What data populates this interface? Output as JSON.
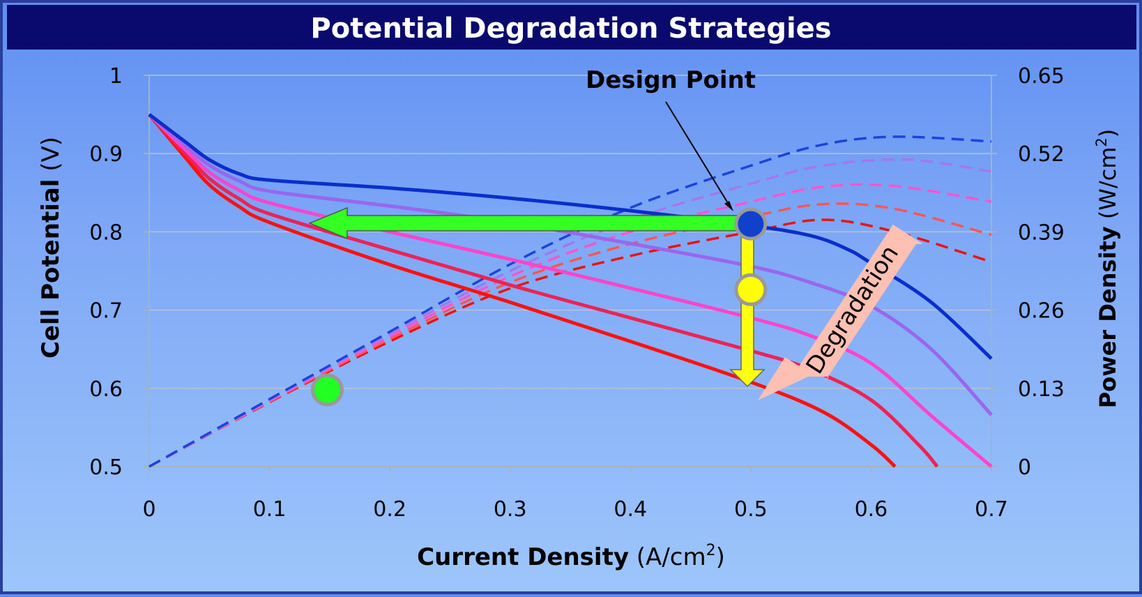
{
  "slide": {
    "title": "Potential Degradation Strategies",
    "colors": {
      "title_bar": "#0a0a6e",
      "border": "#2a3f9c",
      "grid": "#b6c4d8"
    }
  },
  "chart_data": {
    "type": "line",
    "xlabel": {
      "bold": "Current Density",
      "unit": "(A/cm",
      "sup": "2",
      "close": ")"
    },
    "ylabel": {
      "bold": "Cell Potential",
      "unit": "(V)"
    },
    "y2label": {
      "bold": "Power Density",
      "unit": "(W/cm",
      "sup": "2",
      "close": ")"
    },
    "xlim": [
      0,
      0.7
    ],
    "ylim": [
      0.5,
      1.0
    ],
    "y2lim": [
      0,
      0.65
    ],
    "x_ticks": [
      "0",
      "0.1",
      "0.2",
      "0.3",
      "0.4",
      "0.5",
      "0.6",
      "0.7"
    ],
    "y_ticks": [
      "0.5",
      "0.6",
      "0.7",
      "0.8",
      "0.9",
      "1"
    ],
    "y2_ticks": [
      "0",
      "0.13",
      "0.26",
      "0.39",
      "0.52",
      "0.65"
    ],
    "grid": true,
    "polarization_curves": [
      {
        "color": "#0a2ecb",
        "points": [
          [
            0,
            0.95
          ],
          [
            0.03,
            0.915
          ],
          [
            0.05,
            0.892
          ],
          [
            0.075,
            0.874
          ],
          [
            0.1,
            0.866
          ],
          [
            0.2,
            0.856
          ],
          [
            0.3,
            0.843
          ],
          [
            0.4,
            0.827
          ],
          [
            0.5,
            0.808
          ],
          [
            0.55,
            0.795
          ],
          [
            0.58,
            0.778
          ],
          [
            0.6,
            0.76
          ],
          [
            0.65,
            0.71
          ],
          [
            0.7,
            0.638
          ]
        ]
      },
      {
        "color": "#9966ee",
        "points": [
          [
            0,
            0.95
          ],
          [
            0.03,
            0.91
          ],
          [
            0.05,
            0.885
          ],
          [
            0.075,
            0.865
          ],
          [
            0.1,
            0.852
          ],
          [
            0.2,
            0.833
          ],
          [
            0.3,
            0.812
          ],
          [
            0.4,
            0.785
          ],
          [
            0.5,
            0.756
          ],
          [
            0.55,
            0.735
          ],
          [
            0.6,
            0.705
          ],
          [
            0.65,
            0.65
          ],
          [
            0.7,
            0.566
          ]
        ]
      },
      {
        "color": "#ff44cc",
        "points": [
          [
            0,
            0.95
          ],
          [
            0.03,
            0.905
          ],
          [
            0.05,
            0.876
          ],
          [
            0.075,
            0.853
          ],
          [
            0.1,
            0.837
          ],
          [
            0.2,
            0.8
          ],
          [
            0.3,
            0.765
          ],
          [
            0.4,
            0.728
          ],
          [
            0.5,
            0.69
          ],
          [
            0.55,
            0.667
          ],
          [
            0.6,
            0.632
          ],
          [
            0.65,
            0.565
          ],
          [
            0.7,
            0.5
          ]
        ]
      },
      {
        "color": "#ee2255",
        "points": [
          [
            0,
            0.95
          ],
          [
            0.03,
            0.9
          ],
          [
            0.05,
            0.868
          ],
          [
            0.075,
            0.842
          ],
          [
            0.1,
            0.823
          ],
          [
            0.2,
            0.777
          ],
          [
            0.3,
            0.732
          ],
          [
            0.4,
            0.69
          ],
          [
            0.5,
            0.648
          ],
          [
            0.55,
            0.624
          ],
          [
            0.6,
            0.585
          ],
          [
            0.64,
            0.527
          ],
          [
            0.655,
            0.5
          ]
        ]
      },
      {
        "color": "#ff1111",
        "points": [
          [
            0,
            0.95
          ],
          [
            0.03,
            0.895
          ],
          [
            0.05,
            0.86
          ],
          [
            0.075,
            0.832
          ],
          [
            0.1,
            0.812
          ],
          [
            0.2,
            0.758
          ],
          [
            0.3,
            0.71
          ],
          [
            0.4,
            0.66
          ],
          [
            0.5,
            0.608
          ],
          [
            0.56,
            0.57
          ],
          [
            0.6,
            0.528
          ],
          [
            0.62,
            0.5
          ]
        ]
      }
    ],
    "power_curves": [
      {
        "color": "#1a44dd",
        "points": [
          [
            0,
            0
          ],
          [
            0.1,
            0.112
          ],
          [
            0.2,
            0.224
          ],
          [
            0.3,
            0.336
          ],
          [
            0.4,
            0.43
          ],
          [
            0.5,
            0.5
          ],
          [
            0.56,
            0.535
          ],
          [
            0.62,
            0.548
          ],
          [
            0.7,
            0.54
          ]
        ]
      },
      {
        "color": "#a577ee",
        "points": [
          [
            0,
            0
          ],
          [
            0.1,
            0.11
          ],
          [
            0.2,
            0.22
          ],
          [
            0.3,
            0.325
          ],
          [
            0.4,
            0.41
          ],
          [
            0.5,
            0.47
          ],
          [
            0.56,
            0.5
          ],
          [
            0.63,
            0.51
          ],
          [
            0.7,
            0.49
          ]
        ]
      },
      {
        "color": "#ff55cc",
        "points": [
          [
            0,
            0
          ],
          [
            0.1,
            0.109
          ],
          [
            0.2,
            0.216
          ],
          [
            0.3,
            0.316
          ],
          [
            0.4,
            0.39
          ],
          [
            0.5,
            0.44
          ],
          [
            0.56,
            0.465
          ],
          [
            0.62,
            0.466
          ],
          [
            0.7,
            0.44
          ]
        ]
      },
      {
        "color": "#ff5555",
        "points": [
          [
            0,
            0
          ],
          [
            0.1,
            0.108
          ],
          [
            0.2,
            0.212
          ],
          [
            0.3,
            0.306
          ],
          [
            0.4,
            0.37
          ],
          [
            0.5,
            0.415
          ],
          [
            0.56,
            0.436
          ],
          [
            0.62,
            0.428
          ],
          [
            0.7,
            0.385
          ]
        ]
      },
      {
        "color": "#ee1111",
        "points": [
          [
            0,
            0
          ],
          [
            0.1,
            0.107
          ],
          [
            0.2,
            0.208
          ],
          [
            0.3,
            0.296
          ],
          [
            0.4,
            0.35
          ],
          [
            0.5,
            0.39
          ],
          [
            0.56,
            0.41
          ],
          [
            0.62,
            0.39
          ],
          [
            0.7,
            0.34
          ]
        ]
      }
    ],
    "markers": [
      {
        "name": "design-point-marker",
        "x": 0.5,
        "y": 0.81,
        "color": "#1040cc"
      },
      {
        "name": "yellow-marker",
        "x": 0.5,
        "y": 0.726,
        "color": "#ffff00"
      },
      {
        "name": "green-marker",
        "x": 0.148,
        "y": 0.598,
        "color": "#22ff22"
      }
    ],
    "annotations": {
      "design_point": "Design Point",
      "degradation": "Degradation"
    },
    "arrow_colors": {
      "green": "#33ff22",
      "yellow": "#ffff11",
      "degradation": "#ffc0b4"
    }
  }
}
